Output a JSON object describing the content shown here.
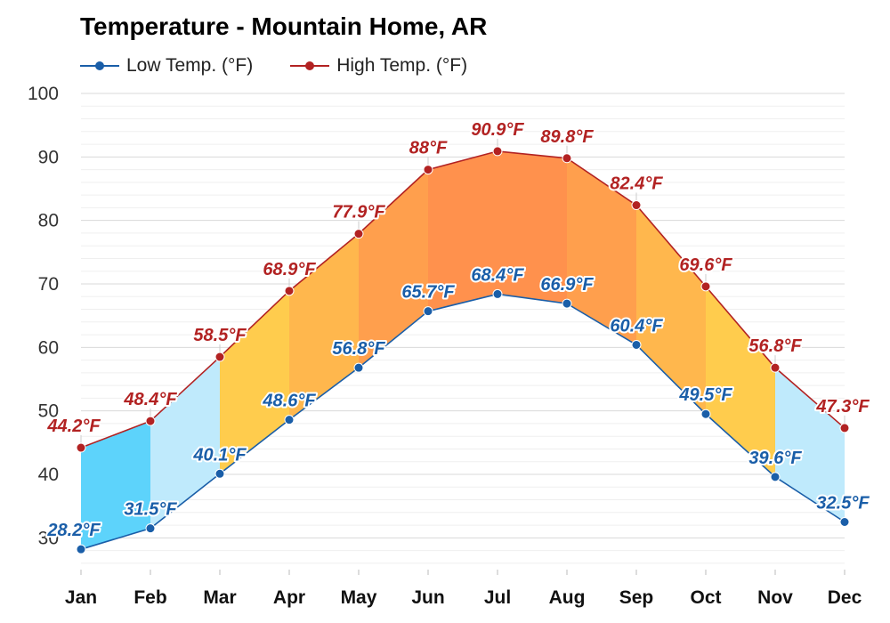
{
  "chart_data": {
    "type": "line",
    "title": "Temperature - Mountain Home, AR",
    "categories": [
      "Jan",
      "Feb",
      "Mar",
      "Apr",
      "May",
      "Jun",
      "Jul",
      "Aug",
      "Sep",
      "Oct",
      "Nov",
      "Dec"
    ],
    "series": [
      {
        "name": "Low Temp. (°F)",
        "color": "#1a5ea8",
        "values": [
          28.2,
          31.5,
          40.1,
          48.6,
          56.8,
          65.7,
          68.4,
          66.9,
          60.4,
          49.5,
          39.6,
          32.5
        ],
        "labels": [
          "28.2°F",
          "31.5°F",
          "40.1°F",
          "48.6°F",
          "56.8°F",
          "65.7°F",
          "68.4°F",
          "66.9°F",
          "60.4°F",
          "49.5°F",
          "39.6°F",
          "32.5°F"
        ]
      },
      {
        "name": "High Temp. (°F)",
        "color": "#b22222",
        "values": [
          44.2,
          48.4,
          58.5,
          68.9,
          77.9,
          88,
          90.9,
          89.8,
          82.4,
          69.6,
          56.8,
          47.3
        ],
        "labels": [
          "44.2°F",
          "48.4°F",
          "58.5°F",
          "68.9°F",
          "77.9°F",
          "88°F",
          "90.9°F",
          "89.8°F",
          "82.4°F",
          "69.6°F",
          "56.8°F",
          "47.3°F"
        ]
      }
    ],
    "yticks": [
      "30",
      "40",
      "50",
      "60",
      "70",
      "80",
      "90",
      "100"
    ],
    "ylim": [
      25,
      100
    ],
    "band_colors": [
      "#5dd3fb",
      "#bfeafc",
      "#ffcc4d",
      "#ffb74d",
      "#ff9f4d",
      "#ff914d",
      "#ff914d",
      "#ff9f4d",
      "#ffb74d",
      "#ffcc4d",
      "#bfeafc",
      "#5dd3fb"
    ],
    "grid": true,
    "legend_position": "top-left"
  }
}
